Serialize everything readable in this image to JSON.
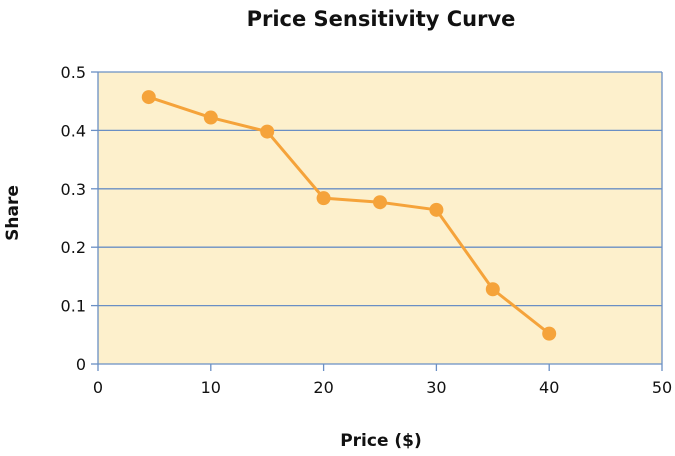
{
  "chart_data": {
    "type": "line",
    "title": "Price Sensitivity Curve",
    "xlabel": "Price ($)",
    "ylabel": "Share",
    "xlim": [
      0,
      50
    ],
    "ylim": [
      0,
      0.5
    ],
    "xticks": [
      "0",
      "10",
      "20",
      "30",
      "40",
      "50"
    ],
    "yticks": [
      "0",
      "0.1",
      "0.2",
      "0.3",
      "0.4",
      "0.5"
    ],
    "grid": "horizontal",
    "colors": {
      "series": "#f5a33a",
      "plot_background": "#fdf0cc",
      "grid": "#6a8fc4",
      "axis": "#6a8fc4"
    },
    "series": [
      {
        "x": [
          4.5,
          10,
          15,
          20,
          25,
          30,
          35,
          40
        ],
        "y": [
          0.457,
          0.422,
          0.398,
          0.284,
          0.277,
          0.264,
          0.128,
          0.052
        ]
      }
    ]
  }
}
